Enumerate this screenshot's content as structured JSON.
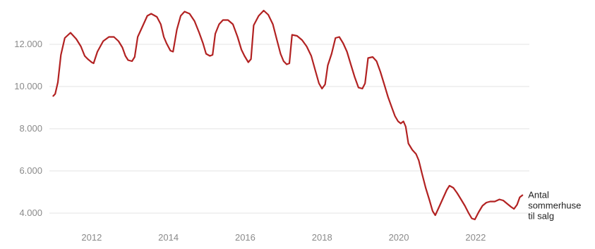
{
  "chart_data": {
    "type": "line",
    "title": "",
    "xlabel": "",
    "ylabel": "",
    "xlim": [
      2010.9,
      2023.4
    ],
    "ylim": [
      3600,
      13700
    ],
    "grid": true,
    "legend": "none",
    "x_ticks": [
      {
        "value": 2012,
        "label": "2012"
      },
      {
        "value": 2014,
        "label": "2014"
      },
      {
        "value": 2016,
        "label": "2016"
      },
      {
        "value": 2018,
        "label": "2018"
      },
      {
        "value": 2020,
        "label": "2020"
      },
      {
        "value": 2022,
        "label": "2022"
      }
    ],
    "y_ticks": [
      {
        "value": 4000,
        "label": "4.000"
      },
      {
        "value": 6000,
        "label": "6.000"
      },
      {
        "value": 8000,
        "label": "8.000"
      },
      {
        "value": 10000,
        "label": "10.000"
      },
      {
        "value": 12000,
        "label": "12.000"
      }
    ],
    "series": [
      {
        "end_label": [
          "Antal",
          "sommerhuse",
          "til salg"
        ],
        "color": "#b22222",
        "points": [
          [
            2011.0,
            9550
          ],
          [
            2011.05,
            9650
          ],
          [
            2011.12,
            10200
          ],
          [
            2011.2,
            11500
          ],
          [
            2011.3,
            12300
          ],
          [
            2011.45,
            12550
          ],
          [
            2011.6,
            12250
          ],
          [
            2011.72,
            11900
          ],
          [
            2011.82,
            11450
          ],
          [
            2011.9,
            11300
          ],
          [
            2012.0,
            11150
          ],
          [
            2012.05,
            11100
          ],
          [
            2012.15,
            11650
          ],
          [
            2012.3,
            12150
          ],
          [
            2012.45,
            12350
          ],
          [
            2012.58,
            12350
          ],
          [
            2012.7,
            12150
          ],
          [
            2012.8,
            11850
          ],
          [
            2012.88,
            11450
          ],
          [
            2012.95,
            11250
          ],
          [
            2013.05,
            11200
          ],
          [
            2013.12,
            11400
          ],
          [
            2013.2,
            12350
          ],
          [
            2013.35,
            12950
          ],
          [
            2013.45,
            13350
          ],
          [
            2013.55,
            13450
          ],
          [
            2013.7,
            13300
          ],
          [
            2013.8,
            12950
          ],
          [
            2013.88,
            12350
          ],
          [
            2013.95,
            12050
          ],
          [
            2014.05,
            11700
          ],
          [
            2014.12,
            11650
          ],
          [
            2014.22,
            12700
          ],
          [
            2014.32,
            13350
          ],
          [
            2014.42,
            13550
          ],
          [
            2014.55,
            13450
          ],
          [
            2014.68,
            13100
          ],
          [
            2014.8,
            12550
          ],
          [
            2014.9,
            12050
          ],
          [
            2014.98,
            11550
          ],
          [
            2015.08,
            11450
          ],
          [
            2015.15,
            11500
          ],
          [
            2015.22,
            12500
          ],
          [
            2015.32,
            12950
          ],
          [
            2015.42,
            13150
          ],
          [
            2015.55,
            13150
          ],
          [
            2015.68,
            12950
          ],
          [
            2015.8,
            12350
          ],
          [
            2015.9,
            11750
          ],
          [
            2015.98,
            11450
          ],
          [
            2016.08,
            11150
          ],
          [
            2016.15,
            11300
          ],
          [
            2016.22,
            12900
          ],
          [
            2016.35,
            13350
          ],
          [
            2016.48,
            13600
          ],
          [
            2016.6,
            13400
          ],
          [
            2016.72,
            12950
          ],
          [
            2016.82,
            12250
          ],
          [
            2016.92,
            11550
          ],
          [
            2017.0,
            11200
          ],
          [
            2017.08,
            11050
          ],
          [
            2017.15,
            11100
          ],
          [
            2017.22,
            12450
          ],
          [
            2017.35,
            12400
          ],
          [
            2017.48,
            12200
          ],
          [
            2017.6,
            11900
          ],
          [
            2017.72,
            11450
          ],
          [
            2017.82,
            10800
          ],
          [
            2017.92,
            10150
          ],
          [
            2018.0,
            9900
          ],
          [
            2018.08,
            10100
          ],
          [
            2018.15,
            11000
          ],
          [
            2018.25,
            11550
          ],
          [
            2018.35,
            12300
          ],
          [
            2018.45,
            12350
          ],
          [
            2018.55,
            12050
          ],
          [
            2018.65,
            11650
          ],
          [
            2018.75,
            11050
          ],
          [
            2018.85,
            10450
          ],
          [
            2018.95,
            9950
          ],
          [
            2019.05,
            9900
          ],
          [
            2019.12,
            10150
          ],
          [
            2019.2,
            11350
          ],
          [
            2019.32,
            11400
          ],
          [
            2019.42,
            11200
          ],
          [
            2019.52,
            10700
          ],
          [
            2019.62,
            10100
          ],
          [
            2019.72,
            9500
          ],
          [
            2019.82,
            9000
          ],
          [
            2019.9,
            8600
          ],
          [
            2019.98,
            8350
          ],
          [
            2020.05,
            8250
          ],
          [
            2020.12,
            8350
          ],
          [
            2020.18,
            8100
          ],
          [
            2020.25,
            7300
          ],
          [
            2020.35,
            7000
          ],
          [
            2020.45,
            6800
          ],
          [
            2020.52,
            6500
          ],
          [
            2020.6,
            5900
          ],
          [
            2020.7,
            5200
          ],
          [
            2020.8,
            4600
          ],
          [
            2020.88,
            4100
          ],
          [
            2020.95,
            3900
          ],
          [
            2021.05,
            4300
          ],
          [
            2021.15,
            4700
          ],
          [
            2021.25,
            5100
          ],
          [
            2021.32,
            5300
          ],
          [
            2021.42,
            5200
          ],
          [
            2021.52,
            4950
          ],
          [
            2021.62,
            4650
          ],
          [
            2021.72,
            4350
          ],
          [
            2021.82,
            4000
          ],
          [
            2021.9,
            3750
          ],
          [
            2021.98,
            3700
          ],
          [
            2022.08,
            4050
          ],
          [
            2022.18,
            4350
          ],
          [
            2022.28,
            4500
          ],
          [
            2022.38,
            4550
          ],
          [
            2022.5,
            4550
          ],
          [
            2022.62,
            4650
          ],
          [
            2022.72,
            4600
          ],
          [
            2022.82,
            4450
          ],
          [
            2022.92,
            4300
          ],
          [
            2023.0,
            4200
          ],
          [
            2023.08,
            4400
          ],
          [
            2023.15,
            4750
          ],
          [
            2023.22,
            4850
          ]
        ]
      }
    ]
  }
}
